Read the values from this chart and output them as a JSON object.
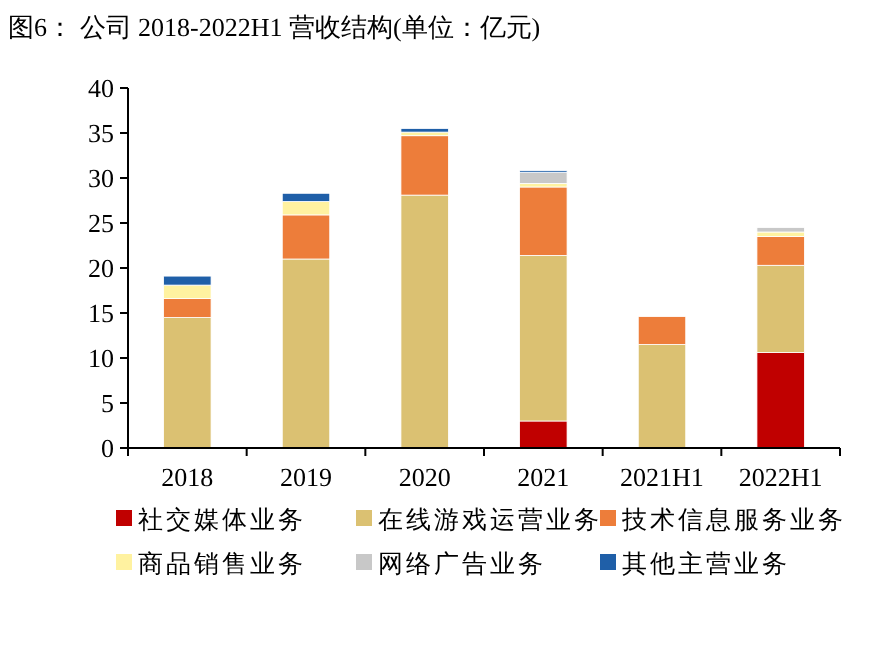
{
  "chart_data": {
    "type": "bar",
    "stacked": true,
    "title": "图6：  公司 2018-2022H1 营收结构(单位：亿元)",
    "categories": [
      "2018",
      "2019",
      "2020",
      "2021",
      "2021H1",
      "2022H1"
    ],
    "series": [
      {
        "name": "社交媒体业务",
        "color": "#c00000",
        "values": [
          null,
          null,
          null,
          3.0,
          null,
          10.6
        ]
      },
      {
        "name": "在线游戏运营业务",
        "color": "#dbc172",
        "values": [
          14.5,
          21.0,
          28.1,
          18.4,
          11.5,
          9.7
        ]
      },
      {
        "name": "技术信息服务业务",
        "color": "#ed7d3a",
        "values": [
          2.1,
          4.9,
          6.6,
          7.6,
          3.1,
          3.2
        ]
      },
      {
        "name": "商品销售业务",
        "color": "#fff2a0",
        "values": [
          1.5,
          1.5,
          0.4,
          0.4,
          null,
          0.5
        ]
      },
      {
        "name": "网络广告业务",
        "color": "#c8c8c8",
        "values": [
          null,
          null,
          null,
          1.2,
          null,
          0.5
        ]
      },
      {
        "name": "其他主营业务",
        "color": "#1f5fa8",
        "values": [
          1.0,
          0.9,
          0.4,
          0.2,
          null,
          null
        ]
      }
    ],
    "ylim": [
      0,
      40
    ],
    "yticks": [
      0,
      5,
      10,
      15,
      20,
      25,
      30,
      35,
      40
    ],
    "grid": false,
    "legend": "bottom"
  }
}
